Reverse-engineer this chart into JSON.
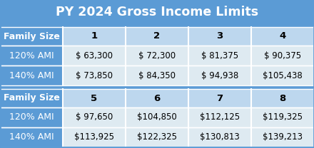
{
  "title": "PY 2024 Gross Income Limits",
  "title_bg": "#5b9bd5",
  "title_color": "#ffffff",
  "header_bg": "#bdd7ee",
  "header_color": "#000000",
  "label_bg": "#5b9bd5",
  "label_color": "#ffffff",
  "data_bg": "#deeaf1",
  "sep_bg": "#5b9bd5",
  "col_headers_1": [
    "Family Size",
    "1",
    "2",
    "3",
    "4"
  ],
  "col_headers_2": [
    "Family Size",
    "5",
    "6",
    "7",
    "8"
  ],
  "row_labels": [
    "120% AMI",
    "140% AMI"
  ],
  "table1_data": [
    [
      "$ 63,300",
      "$ 72,300",
      "$ 81,375",
      "$ 90,375"
    ],
    [
      "$ 73,850",
      "$ 84,350",
      "$ 94,938",
      "$105,438"
    ]
  ],
  "table2_data": [
    [
      "$ 97,650",
      "$104,850",
      "$112,125",
      "$119,325"
    ],
    [
      "$113,925",
      "$122,325",
      "$130,813",
      "$139,213"
    ]
  ]
}
